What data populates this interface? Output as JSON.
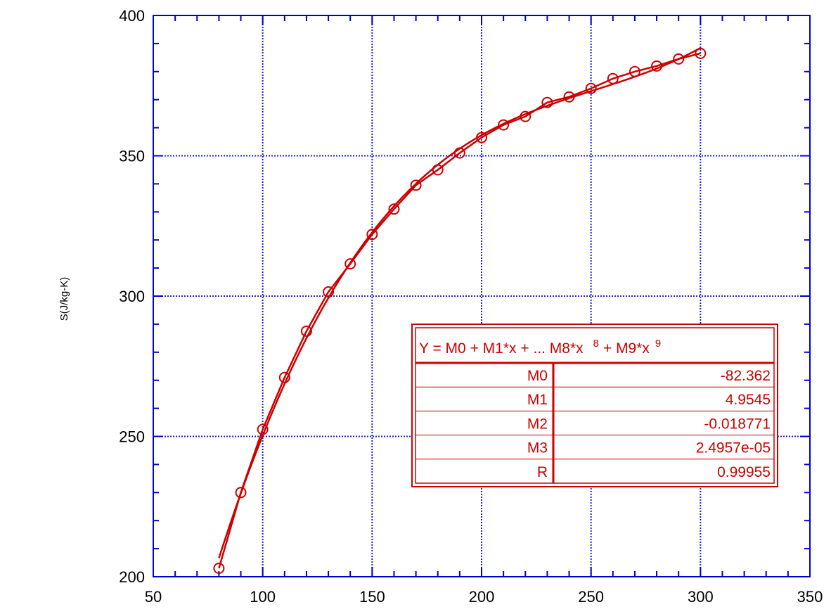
{
  "chart_data": {
    "type": "scatter",
    "ylabel": "S(J/kg-K)",
    "xlabel": "",
    "xlim": [
      50,
      350
    ],
    "ylim": [
      200,
      400
    ],
    "x_ticks": [
      50,
      100,
      150,
      200,
      250,
      300,
      350
    ],
    "y_ticks": [
      200,
      250,
      300,
      350,
      400
    ],
    "grid": true,
    "series": [
      {
        "type": "scatter-line",
        "x": [
          80,
          90,
          100,
          110,
          120,
          130,
          140,
          150,
          160,
          170,
          180,
          190,
          200,
          210,
          220,
          230,
          240,
          250,
          260,
          270,
          280,
          290,
          300
        ],
        "y": [
          203,
          230,
          252.5,
          271,
          287.5,
          301.5,
          311.5,
          322,
          331,
          339.5,
          345,
          351,
          356.5,
          361,
          364,
          369,
          371,
          374,
          377.5,
          380,
          382,
          384.5,
          386.5
        ]
      },
      {
        "type": "fit-line",
        "coefficients": [
          -82.362,
          4.9545,
          -0.018771,
          2.4957e-05
        ]
      }
    ],
    "legend_placement": "lower-right",
    "fit_table": {
      "equation": "Y = M0 + M1*x + ... M8*x",
      "exp1": "8",
      "plus": "+ M9*x",
      "exp2": "9",
      "rows": [
        {
          "label": "M0",
          "value": "-82.362"
        },
        {
          "label": "M1",
          "value": "4.9545"
        },
        {
          "label": "M2",
          "value": "-0.018771"
        },
        {
          "label": "M3",
          "value": "2.4957e-05"
        },
        {
          "label": "R",
          "value": "0.99955"
        }
      ]
    },
    "colors": {
      "axis": "#0000cc",
      "grid": "#2222cc",
      "series": "#cc0000"
    }
  }
}
